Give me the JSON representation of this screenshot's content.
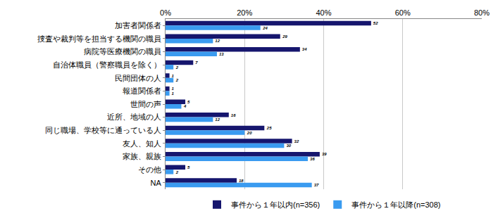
{
  "chart_data": {
    "type": "bar",
    "orientation": "horizontal",
    "categories": [
      "加害者関係者",
      "捜査や裁判等を担当する機関の職員",
      "病院等医療機関の職員",
      "自治体職員（警察職員を除く）",
      "民間団体の人",
      "報道関係者",
      "世間の声",
      "近所、地域の人",
      "同じ職場、学校等に通っている人",
      "友人、知人",
      "家族、親族",
      "その他",
      "NA"
    ],
    "series": [
      {
        "name": "事件から１年以内(n=356)",
        "color": "#16166e",
        "values": [
          52,
          29,
          34,
          7,
          1,
          1,
          5,
          16,
          25,
          32,
          39,
          5,
          18
        ]
      },
      {
        "name": "事件から１年以降(n=308)",
        "color": "#3a9bf0",
        "values": [
          24,
          12,
          13,
          2,
          2,
          1,
          4,
          12,
          20,
          30,
          36,
          2,
          37
        ]
      }
    ],
    "xlim": [
      0,
      80
    ],
    "xticks": [
      {
        "value": 0,
        "label": "0%"
      },
      {
        "value": 20,
        "label": "20%"
      },
      {
        "value": 40,
        "label": "40%"
      },
      {
        "value": 60,
        "label": "60%"
      },
      {
        "value": 80,
        "label": "80%"
      }
    ],
    "grid": true,
    "data_labels": true,
    "legend": "bottom"
  }
}
